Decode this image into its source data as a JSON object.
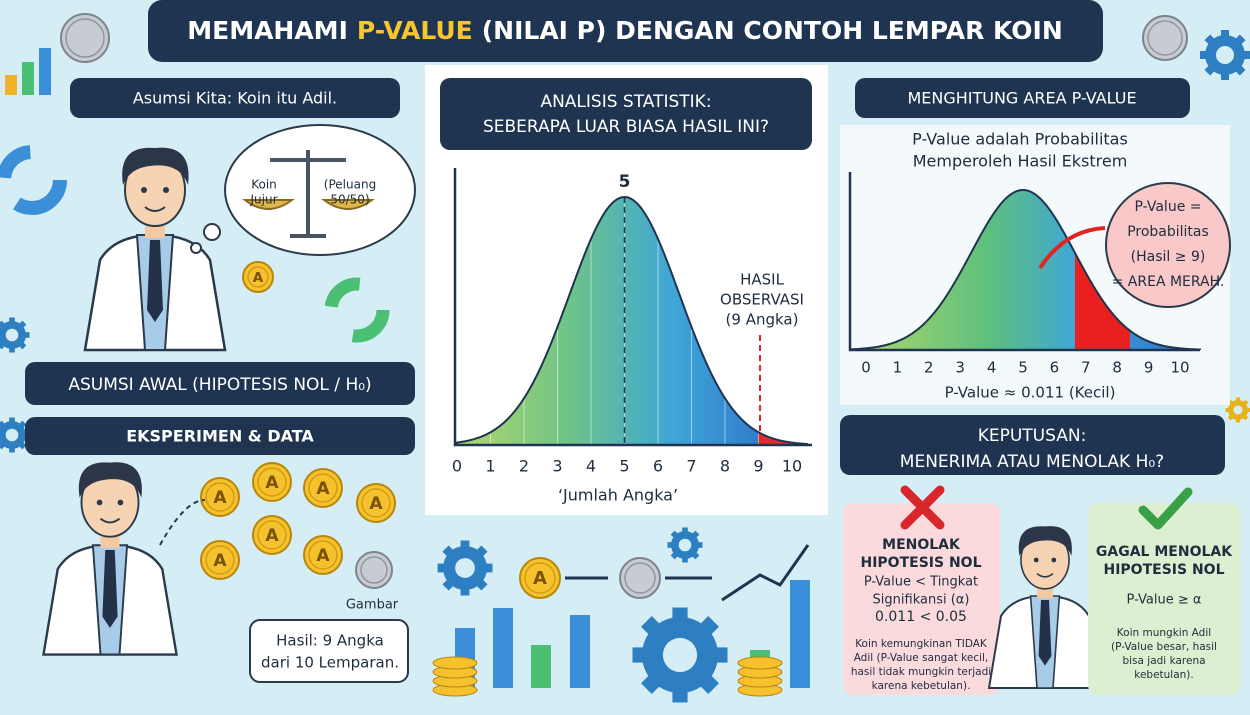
{
  "header": {
    "title_parts": [
      "MEMAHAMI",
      "P-VALUE",
      "(NILAI P) DENGAN CONTOH LEMPAR KOIN"
    ]
  },
  "left_panel": {
    "assumption": "Asumsi Kita: Koin itu Adil.",
    "scale_left": [
      "Koin",
      "Jujur"
    ],
    "scale_right": [
      "(Peluang",
      "50/50)"
    ],
    "hypothesis": "ASUMSI AWAL (HIPOTESIS NOL / H₀)",
    "experiment": "EKSPERIMEN & DATA",
    "coin_face": "A",
    "tails_label": "Gambar",
    "result": [
      "Hasil: 9 Angka",
      "dari 10 Lemparan."
    ]
  },
  "center_panel": {
    "title": [
      "ANALISIS STATISTIK:",
      "SEBERAPA LUAR BIASA HASIL INI?"
    ],
    "peak_label": "5",
    "observed": [
      "HASIL",
      "OBSERVASI",
      "(9 Angka)"
    ],
    "xticks": [
      0,
      1,
      2,
      3,
      4,
      5,
      6,
      7,
      8,
      9,
      10
    ],
    "xlabel": "‘Jumlah Angka’"
  },
  "right_panel": {
    "title": "MENGHITUNG AREA P-VALUE",
    "subtitle": [
      "P-Value adalah Probabilitas",
      "Memperoleh Hasil Ekstrem"
    ],
    "callout": [
      "P-Value =",
      "Probabilitas",
      "(Hasil ≥ 9)",
      "= AREA MERAH."
    ],
    "xticks": [
      0,
      1,
      2,
      3,
      4,
      5,
      6,
      7,
      8,
      9,
      10
    ],
    "p_value": "P-Value ≈ 0.011 (Kecil)"
  },
  "decision": {
    "title": [
      "KEPUTUSAN:",
      "MENERIMA ATAU MENOLAK H₀?"
    ],
    "reject": {
      "heading": [
        "MENOLAK",
        "HIPOTESIS NOL"
      ],
      "rule": [
        "P-Value < Tingkat",
        "Signifikansi (α)"
      ],
      "comparison": "0.011 < 0.05",
      "explanation": [
        "Koin kemungkinan TIDAK",
        "Adil (P-Value sangat kecil,",
        "hasil tidak mungkin terjadi",
        "karena kebetulan)."
      ]
    },
    "accept": {
      "heading": [
        "GAGAL MENOLAK",
        "HIPOTESIS NOL"
      ],
      "rule": "P-Value ≥ α",
      "explanation": [
        "Koin mungkin Adil",
        "(P-Value besar, hasil",
        "bisa jadi karena",
        "kebetulan)."
      ]
    }
  }
}
